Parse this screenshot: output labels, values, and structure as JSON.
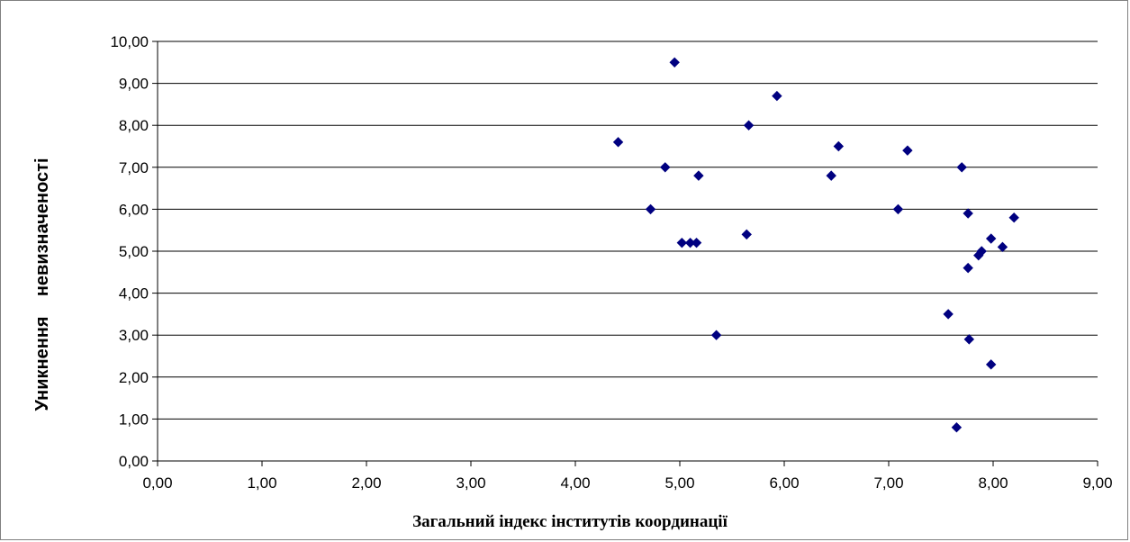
{
  "chart_data": {
    "type": "scatter",
    "title": "",
    "xlabel": "Загальний індекс інститутів координації",
    "ylabel": "Уникнення    невизначеності",
    "xlim": [
      0,
      9
    ],
    "ylim": [
      0,
      10
    ],
    "x_ticks": [
      "0,00",
      "1,00",
      "2,00",
      "3,00",
      "4,00",
      "5,00",
      "6,00",
      "7,00",
      "8,00",
      "9,00"
    ],
    "y_ticks": [
      "0,00",
      "1,00",
      "2,00",
      "3,00",
      "4,00",
      "5,00",
      "6,00",
      "7,00",
      "8,00",
      "9,00",
      "10,00"
    ],
    "grid": "horizontal",
    "legend": "none",
    "marker_color": "#000080",
    "points": [
      {
        "x": 4.95,
        "y": 9.5
      },
      {
        "x": 5.93,
        "y": 8.7
      },
      {
        "x": 5.66,
        "y": 8.0
      },
      {
        "x": 4.41,
        "y": 7.6
      },
      {
        "x": 6.52,
        "y": 7.5
      },
      {
        "x": 7.18,
        "y": 7.4
      },
      {
        "x": 4.86,
        "y": 7.0
      },
      {
        "x": 7.7,
        "y": 7.0
      },
      {
        "x": 5.18,
        "y": 6.8
      },
      {
        "x": 6.45,
        "y": 6.8
      },
      {
        "x": 4.72,
        "y": 6.0
      },
      {
        "x": 7.09,
        "y": 6.0
      },
      {
        "x": 7.76,
        "y": 5.9
      },
      {
        "x": 8.2,
        "y": 5.8
      },
      {
        "x": 5.64,
        "y": 5.4
      },
      {
        "x": 7.98,
        "y": 5.3
      },
      {
        "x": 5.02,
        "y": 5.2
      },
      {
        "x": 5.1,
        "y": 5.2
      },
      {
        "x": 5.16,
        "y": 5.2
      },
      {
        "x": 8.09,
        "y": 5.1
      },
      {
        "x": 7.89,
        "y": 5.0
      },
      {
        "x": 7.86,
        "y": 4.9
      },
      {
        "x": 7.76,
        "y": 4.6
      },
      {
        "x": 7.57,
        "y": 3.5
      },
      {
        "x": 5.35,
        "y": 3.0
      },
      {
        "x": 7.77,
        "y": 2.9
      },
      {
        "x": 7.98,
        "y": 2.3
      },
      {
        "x": 7.65,
        "y": 0.8
      }
    ]
  }
}
